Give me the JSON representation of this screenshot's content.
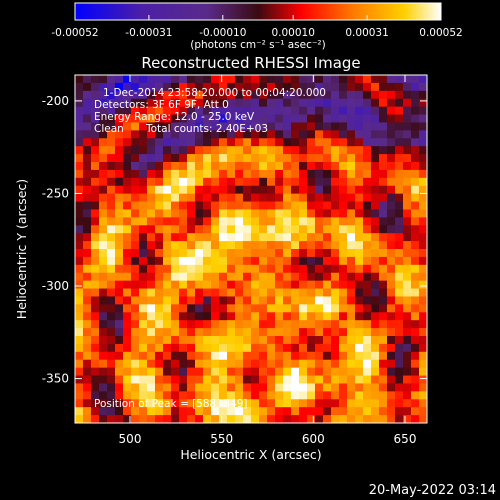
{
  "chart_data": {
    "type": "heatmap",
    "title": "Reconstructed RHESSI Image",
    "xlabel": "Heliocentric X (arcsec)",
    "ylabel": "Heliocentric Y (arcsec)",
    "xlim": [
      470,
      662
    ],
    "ylim": [
      -374,
      -186
    ],
    "x_ticks": [
      500,
      550,
      600,
      650
    ],
    "y_ticks": [
      -200,
      -250,
      -300,
      -350
    ],
    "colorbar": {
      "ticks": [
        "-0.00052",
        "-0.00031",
        "-0.00010",
        "0.00010",
        "0.00031",
        "0.00052"
      ],
      "unit_label": "(photons cm⁻² s⁻¹ asec⁻²)",
      "range": [
        -0.00052,
        0.00052
      ],
      "colors": [
        "#0000ff",
        "#4b1fa8",
        "#5a2a8a",
        "#3a0a12",
        "#ff0000",
        "#ff7a00",
        "#ffd000",
        "#ffffff"
      ]
    },
    "annotations": {
      "time_range": "1-Dec-2014 23:58:20.000 to 00:04:20.000",
      "detectors": "Detectors: 3F 6F 9F, Att 0",
      "energy_range": "Energy Range: 12.0 - 25.0 keV",
      "method": "Clean",
      "total_counts": "Total counts: 2.40E+03",
      "peak_position": "Position of Peak = [588,-349]"
    },
    "peak": [
      588,
      -349
    ]
  },
  "footer": {
    "date": "20-May-2022 03:14"
  }
}
